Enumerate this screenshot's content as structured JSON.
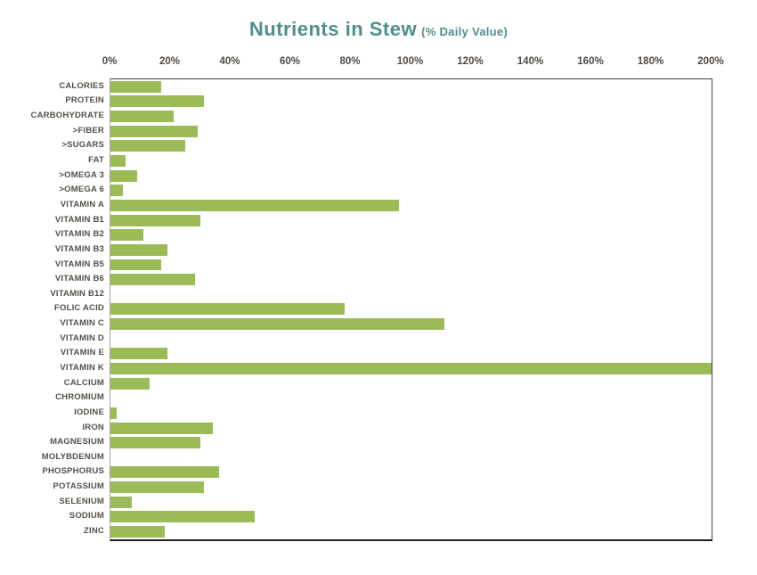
{
  "title": {
    "main": "Nutrients in Stew",
    "subtitle": "(% Daily Value)"
  },
  "colors": {
    "bar": "#9BBB59",
    "title_text": "#4F8E8B",
    "tick_text": "#4F4A44",
    "category_text": "#55504A"
  },
  "chart_data": {
    "type": "bar",
    "orientation": "horizontal",
    "title": "Nutrients in Stew",
    "subtitle": "(% Daily Value)",
    "xlabel": "",
    "ylabel": "",
    "unit": "%",
    "xlim": [
      0,
      200
    ],
    "grid": false,
    "legend": false,
    "x_ticks": [
      "0%",
      "20%",
      "40%",
      "60%",
      "80%",
      "100%",
      "120%",
      "140%",
      "160%",
      "180%",
      "200%"
    ],
    "categories": [
      "CALORIES",
      "PROTEIN",
      "CARBOHYDRATE",
      ">FIBER",
      ">SUGARS",
      "FAT",
      ">OMEGA 3",
      ">OMEGA 6",
      "VITAMIN A",
      "VITAMIN B1",
      "VITAMIN B2",
      "VITAMIN B3",
      "VITAMIN B5",
      "VITAMIN B6",
      "VITAMIN B12",
      "FOLIC ACID",
      "VITAMIN C",
      "VITAMIN D",
      "VITAMIN E",
      "VITAMIN K",
      "CALCIUM",
      "CHROMIUM",
      "IODINE",
      "IRON",
      "MAGNESIUM",
      "MOLYBDENUM",
      "PHOSPHORUS",
      "POTASSIUM",
      "SELENIUM",
      "SODIUM",
      "ZINC"
    ],
    "values": [
      17,
      31,
      21,
      29,
      25,
      5,
      9,
      4,
      96,
      30,
      11,
      19,
      17,
      28,
      0,
      78,
      111,
      0,
      19,
      200,
      13,
      0,
      2,
      34,
      30,
      0,
      36,
      31,
      7,
      48,
      18
    ]
  }
}
